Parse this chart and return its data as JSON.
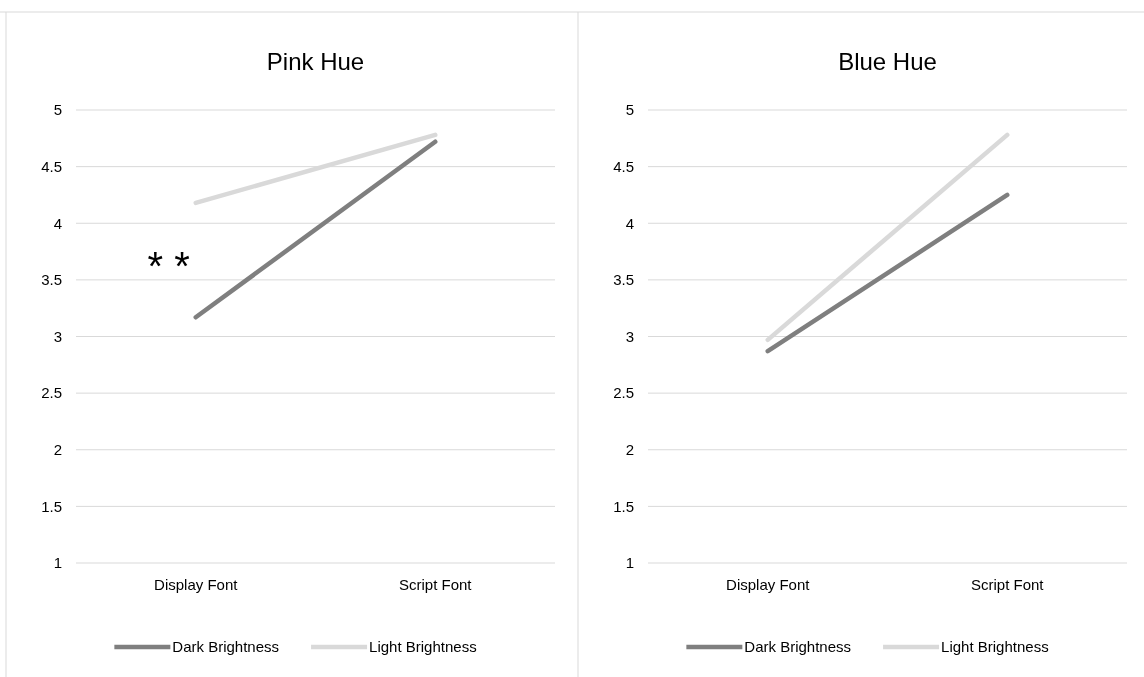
{
  "chart_data": [
    {
      "type": "line",
      "title": "Pink Hue",
      "categories": [
        "Display Font",
        "Script Font"
      ],
      "series": [
        {
          "name": "Dark Brightness",
          "color": "#7f7f7f",
          "values": [
            3.17,
            4.72
          ]
        },
        {
          "name": "Light Brightness",
          "color": "#d9d9d9",
          "values": [
            4.18,
            4.78
          ]
        }
      ],
      "ylim": [
        1,
        5
      ],
      "yticks": [
        1,
        1.5,
        2,
        2.5,
        3,
        3.5,
        4,
        4.5,
        5
      ],
      "grid": "y",
      "legend": "bottom",
      "marker": "none",
      "line_style": "solid",
      "annotations": [
        "* *"
      ]
    },
    {
      "type": "line",
      "title": "Blue Hue",
      "categories": [
        "Display Font",
        "Script Font"
      ],
      "series": [
        {
          "name": "Dark Brightness",
          "color": "#7f7f7f",
          "values": [
            2.87,
            4.25
          ]
        },
        {
          "name": "Light Brightness",
          "color": "#d9d9d9",
          "values": [
            2.97,
            4.78
          ]
        }
      ],
      "ylim": [
        1,
        5
      ],
      "yticks": [
        1,
        1.5,
        2,
        2.5,
        3,
        3.5,
        4,
        4.5,
        5
      ],
      "grid": "y",
      "legend": "bottom",
      "marker": "none",
      "line_style": "solid"
    }
  ]
}
